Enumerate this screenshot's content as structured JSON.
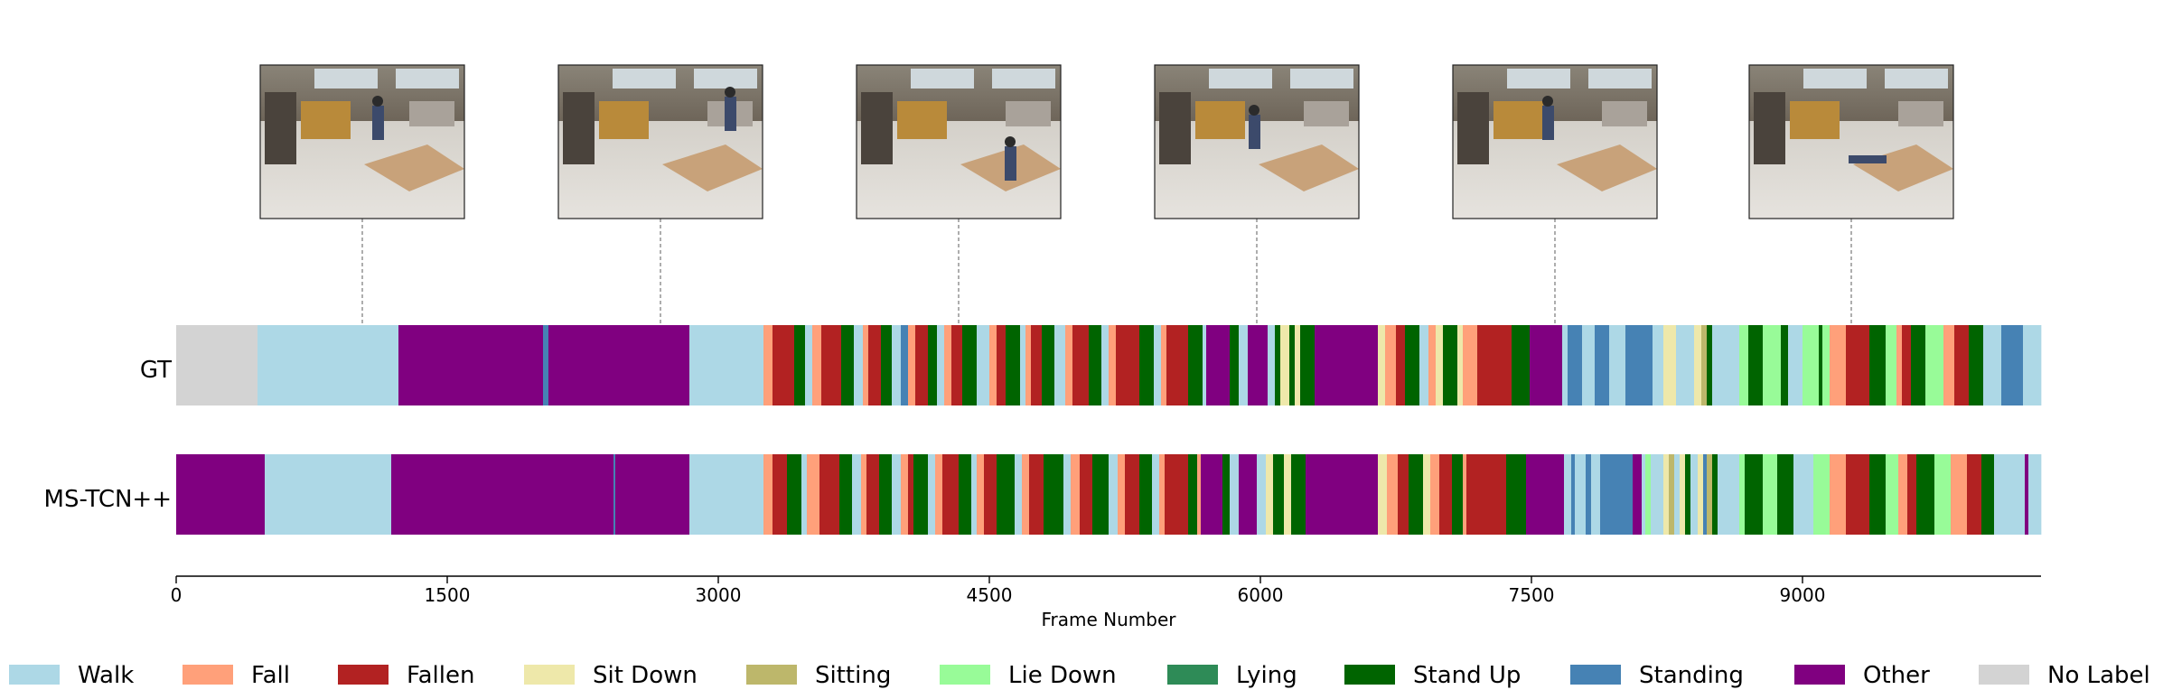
{
  "chart_data": {
    "type": "segmentation-timeline",
    "xlabel": "Frame Number",
    "xlim": [
      0,
      10320
    ],
    "x_ticks": [
      0,
      1500,
      3000,
      4500,
      6000,
      7500,
      9000
    ],
    "x_tick_labels": [
      "0",
      "1500",
      "3000",
      "4500",
      "6000",
      "7500",
      "9000"
    ],
    "rows": [
      "GT",
      "MS-TCN++"
    ],
    "classes": [
      {
        "name": "Walk",
        "color": "#add8e6"
      },
      {
        "name": "Fall",
        "color": "#ffa07a"
      },
      {
        "name": "Fallen",
        "color": "#b22222"
      },
      {
        "name": "Sit Down",
        "color": "#eee8aa"
      },
      {
        "name": "Sitting",
        "color": "#bdb76b"
      },
      {
        "name": "Lie Down",
        "color": "#98fb98"
      },
      {
        "name": "Lying",
        "color": "#2e8b57"
      },
      {
        "name": "Stand Up",
        "color": "#006400"
      },
      {
        "name": "Standing",
        "color": "#4682b4"
      },
      {
        "name": "Other",
        "color": "#800080"
      },
      {
        "name": "No Label",
        "color": "#d3d3d3"
      }
    ],
    "thumbnail_frames": [
      1030,
      2680,
      4330,
      5980,
      7630,
      9270
    ],
    "gt_segments": [
      [
        0,
        450,
        "No Label"
      ],
      [
        450,
        1230,
        "Walk"
      ],
      [
        1230,
        2030,
        "Other"
      ],
      [
        2030,
        2060,
        "Standing"
      ],
      [
        2060,
        2840,
        "Other"
      ],
      [
        2840,
        3250,
        "Walk"
      ],
      [
        3250,
        3300,
        "Fall"
      ],
      [
        3300,
        3420,
        "Fallen"
      ],
      [
        3420,
        3480,
        "Stand Up"
      ],
      [
        3480,
        3520,
        "Walk"
      ],
      [
        3520,
        3570,
        "Fall"
      ],
      [
        3570,
        3680,
        "Fallen"
      ],
      [
        3680,
        3750,
        "Stand Up"
      ],
      [
        3750,
        3800,
        "Walk"
      ],
      [
        3800,
        3830,
        "Fall"
      ],
      [
        3830,
        3900,
        "Fallen"
      ],
      [
        3900,
        3960,
        "Stand Up"
      ],
      [
        3960,
        4010,
        "Walk"
      ],
      [
        4010,
        4050,
        "Standing"
      ],
      [
        4050,
        4090,
        "Fall"
      ],
      [
        4090,
        4160,
        "Fallen"
      ],
      [
        4160,
        4210,
        "Stand Up"
      ],
      [
        4210,
        4250,
        "Walk"
      ],
      [
        4250,
        4290,
        "Fall"
      ],
      [
        4290,
        4350,
        "Fallen"
      ],
      [
        4350,
        4430,
        "Stand Up"
      ],
      [
        4430,
        4500,
        "Walk"
      ],
      [
        4500,
        4540,
        "Fall"
      ],
      [
        4540,
        4590,
        "Fallen"
      ],
      [
        4590,
        4670,
        "Stand Up"
      ],
      [
        4670,
        4700,
        "Walk"
      ],
      [
        4700,
        4730,
        "Fall"
      ],
      [
        4730,
        4790,
        "Fallen"
      ],
      [
        4790,
        4860,
        "Stand Up"
      ],
      [
        4860,
        4920,
        "Walk"
      ],
      [
        4920,
        4960,
        "Fall"
      ],
      [
        4960,
        5050,
        "Fallen"
      ],
      [
        5050,
        5120,
        "Stand Up"
      ],
      [
        5120,
        5160,
        "Walk"
      ],
      [
        5160,
        5200,
        "Fall"
      ],
      [
        5200,
        5330,
        "Fallen"
      ],
      [
        5330,
        5410,
        "Stand Up"
      ],
      [
        5410,
        5450,
        "Walk"
      ],
      [
        5450,
        5480,
        "Fall"
      ],
      [
        5480,
        5600,
        "Fallen"
      ],
      [
        5600,
        5680,
        "Stand Up"
      ],
      [
        5680,
        5700,
        "Walk"
      ],
      [
        5700,
        5830,
        "Other"
      ],
      [
        5830,
        5880,
        "Stand Up"
      ],
      [
        5880,
        5930,
        "Walk"
      ],
      [
        5930,
        6040,
        "Other"
      ],
      [
        6040,
        6080,
        "Walk"
      ],
      [
        6080,
        6110,
        "Stand Up"
      ],
      [
        6110,
        6160,
        "Sit Down"
      ],
      [
        6160,
        6190,
        "Stand Up"
      ],
      [
        6190,
        6220,
        "Sit Down"
      ],
      [
        6220,
        6300,
        "Stand Up"
      ],
      [
        6300,
        6650,
        "Other"
      ],
      [
        6650,
        6690,
        "Sit Down"
      ],
      [
        6690,
        6750,
        "Fall"
      ],
      [
        6750,
        6800,
        "Fallen"
      ],
      [
        6800,
        6880,
        "Stand Up"
      ],
      [
        6880,
        6930,
        "Walk"
      ],
      [
        6930,
        6970,
        "Fall"
      ],
      [
        6970,
        7010,
        "Sit Down"
      ],
      [
        7010,
        7090,
        "Stand Up"
      ],
      [
        7090,
        7120,
        "Sit Down"
      ],
      [
        7120,
        7200,
        "Fall"
      ],
      [
        7200,
        7390,
        "Fallen"
      ],
      [
        7390,
        7490,
        "Stand Up"
      ],
      [
        7490,
        7670,
        "Other"
      ],
      [
        7670,
        7700,
        "Walk"
      ],
      [
        7700,
        7780,
        "Standing"
      ],
      [
        7780,
        7850,
        "Walk"
      ],
      [
        7850,
        7930,
        "Standing"
      ],
      [
        7930,
        8020,
        "Walk"
      ],
      [
        8020,
        8170,
        "Standing"
      ],
      [
        8170,
        8230,
        "Walk"
      ],
      [
        8230,
        8300,
        "Sit Down"
      ],
      [
        8300,
        8400,
        "Walk"
      ],
      [
        8400,
        8440,
        "Sit Down"
      ],
      [
        8440,
        8470,
        "Sitting"
      ],
      [
        8470,
        8500,
        "Stand Up"
      ],
      [
        8500,
        8520,
        "Walk"
      ],
      [
        8520,
        8650,
        "Walk"
      ],
      [
        8650,
        8700,
        "Lie Down"
      ],
      [
        8700,
        8780,
        "Stand Up"
      ],
      [
        8780,
        8880,
        "Lie Down"
      ],
      [
        8880,
        8920,
        "Stand Up"
      ],
      [
        8920,
        9000,
        "Walk"
      ],
      [
        9000,
        9090,
        "Lie Down"
      ],
      [
        9090,
        9110,
        "Stand Up"
      ],
      [
        9110,
        9150,
        "Lie Down"
      ],
      [
        9150,
        9240,
        "Fall"
      ],
      [
        9240,
        9370,
        "Fallen"
      ],
      [
        9370,
        9460,
        "Stand Up"
      ],
      [
        9460,
        9520,
        "Lie Down"
      ],
      [
        9520,
        9550,
        "Fall"
      ],
      [
        9550,
        9600,
        "Fallen"
      ],
      [
        9600,
        9680,
        "Stand Up"
      ],
      [
        9680,
        9780,
        "Lie Down"
      ],
      [
        9780,
        9840,
        "Fall"
      ],
      [
        9840,
        9920,
        "Fallen"
      ],
      [
        9920,
        10000,
        "Stand Up"
      ],
      [
        10000,
        10100,
        "Walk"
      ],
      [
        10100,
        10220,
        "Standing"
      ],
      [
        10220,
        10320,
        "Walk"
      ]
    ],
    "pred_segments": [
      [
        0,
        490,
        "Other"
      ],
      [
        490,
        1190,
        "Walk"
      ],
      [
        1190,
        2420,
        "Other"
      ],
      [
        2420,
        2430,
        "Standing"
      ],
      [
        2430,
        2840,
        "Other"
      ],
      [
        2840,
        3250,
        "Walk"
      ],
      [
        3250,
        3300,
        "Fall"
      ],
      [
        3300,
        3380,
        "Fallen"
      ],
      [
        3380,
        3460,
        "Stand Up"
      ],
      [
        3460,
        3490,
        "Walk"
      ],
      [
        3490,
        3560,
        "Fall"
      ],
      [
        3560,
        3670,
        "Fallen"
      ],
      [
        3670,
        3740,
        "Stand Up"
      ],
      [
        3740,
        3790,
        "Walk"
      ],
      [
        3790,
        3820,
        "Fall"
      ],
      [
        3820,
        3890,
        "Fallen"
      ],
      [
        3890,
        3960,
        "Stand Up"
      ],
      [
        3960,
        4010,
        "Walk"
      ],
      [
        4010,
        4050,
        "Fall"
      ],
      [
        4050,
        4080,
        "Fallen"
      ],
      [
        4080,
        4160,
        "Stand Up"
      ],
      [
        4160,
        4200,
        "Walk"
      ],
      [
        4200,
        4240,
        "Fall"
      ],
      [
        4240,
        4330,
        "Fallen"
      ],
      [
        4330,
        4400,
        "Stand Up"
      ],
      [
        4400,
        4430,
        "Walk"
      ],
      [
        4430,
        4470,
        "Fall"
      ],
      [
        4470,
        4540,
        "Fallen"
      ],
      [
        4540,
        4640,
        "Stand Up"
      ],
      [
        4640,
        4680,
        "Walk"
      ],
      [
        4680,
        4720,
        "Fall"
      ],
      [
        4720,
        4800,
        "Fallen"
      ],
      [
        4800,
        4910,
        "Stand Up"
      ],
      [
        4910,
        4950,
        "Walk"
      ],
      [
        4950,
        5000,
        "Fall"
      ],
      [
        5000,
        5070,
        "Fallen"
      ],
      [
        5070,
        5160,
        "Stand Up"
      ],
      [
        5160,
        5210,
        "Walk"
      ],
      [
        5210,
        5250,
        "Fall"
      ],
      [
        5250,
        5330,
        "Fallen"
      ],
      [
        5330,
        5400,
        "Stand Up"
      ],
      [
        5400,
        5440,
        "Walk"
      ],
      [
        5440,
        5470,
        "Fall"
      ],
      [
        5470,
        5600,
        "Fallen"
      ],
      [
        5600,
        5650,
        "Stand Up"
      ],
      [
        5650,
        5670,
        "Fall"
      ],
      [
        5670,
        5790,
        "Other"
      ],
      [
        5790,
        5830,
        "Stand Up"
      ],
      [
        5830,
        5880,
        "Walk"
      ],
      [
        5880,
        5980,
        "Other"
      ],
      [
        5980,
        6030,
        "Walk"
      ],
      [
        6030,
        6070,
        "Sit Down"
      ],
      [
        6070,
        6130,
        "Stand Up"
      ],
      [
        6130,
        6170,
        "Sit Down"
      ],
      [
        6170,
        6250,
        "Stand Up"
      ],
      [
        6250,
        6650,
        "Other"
      ],
      [
        6650,
        6700,
        "Sit Down"
      ],
      [
        6700,
        6760,
        "Fall"
      ],
      [
        6760,
        6820,
        "Fallen"
      ],
      [
        6820,
        6900,
        "Stand Up"
      ],
      [
        6900,
        6940,
        "Sit Down"
      ],
      [
        6940,
        6990,
        "Fall"
      ],
      [
        6990,
        7060,
        "Fallen"
      ],
      [
        7060,
        7120,
        "Stand Up"
      ],
      [
        7120,
        7140,
        "Fall"
      ],
      [
        7140,
        7360,
        "Fallen"
      ],
      [
        7360,
        7470,
        "Stand Up"
      ],
      [
        7470,
        7680,
        "Other"
      ],
      [
        7680,
        7720,
        "Walk"
      ],
      [
        7720,
        7740,
        "Standing"
      ],
      [
        7740,
        7800,
        "Walk"
      ],
      [
        7800,
        7830,
        "Standing"
      ],
      [
        7830,
        7880,
        "Walk"
      ],
      [
        7880,
        8060,
        "Standing"
      ],
      [
        8060,
        8110,
        "Other"
      ],
      [
        8110,
        8130,
        "Walk"
      ],
      [
        8130,
        8160,
        "Lie Down"
      ],
      [
        8160,
        8230,
        "Walk"
      ],
      [
        8230,
        8260,
        "Sit Down"
      ],
      [
        8260,
        8290,
        "Sitting"
      ],
      [
        8290,
        8320,
        "Walk"
      ],
      [
        8320,
        8350,
        "Sit Down"
      ],
      [
        8350,
        8380,
        "Stand Up"
      ],
      [
        8380,
        8420,
        "Walk"
      ],
      [
        8420,
        8450,
        "Sit Down"
      ],
      [
        8450,
        8470,
        "Standing"
      ],
      [
        8470,
        8500,
        "Sitting"
      ],
      [
        8500,
        8530,
        "Stand Up"
      ],
      [
        8530,
        8650,
        "Walk"
      ],
      [
        8650,
        8680,
        "Lie Down"
      ],
      [
        8680,
        8780,
        "Stand Up"
      ],
      [
        8780,
        8860,
        "Lie Down"
      ],
      [
        8860,
        8950,
        "Stand Up"
      ],
      [
        8950,
        9060,
        "Walk"
      ],
      [
        9060,
        9150,
        "Lie Down"
      ],
      [
        9150,
        9240,
        "Fall"
      ],
      [
        9240,
        9370,
        "Fallen"
      ],
      [
        9370,
        9460,
        "Stand Up"
      ],
      [
        9460,
        9530,
        "Lie Down"
      ],
      [
        9530,
        9580,
        "Fall"
      ],
      [
        9580,
        9630,
        "Fallen"
      ],
      [
        9630,
        9730,
        "Stand Up"
      ],
      [
        9730,
        9820,
        "Lie Down"
      ],
      [
        9820,
        9910,
        "Fall"
      ],
      [
        9910,
        9990,
        "Fallen"
      ],
      [
        9990,
        10060,
        "Stand Up"
      ],
      [
        10060,
        10230,
        "Walk"
      ],
      [
        10230,
        10250,
        "Other"
      ],
      [
        10250,
        10320,
        "Walk"
      ]
    ]
  }
}
